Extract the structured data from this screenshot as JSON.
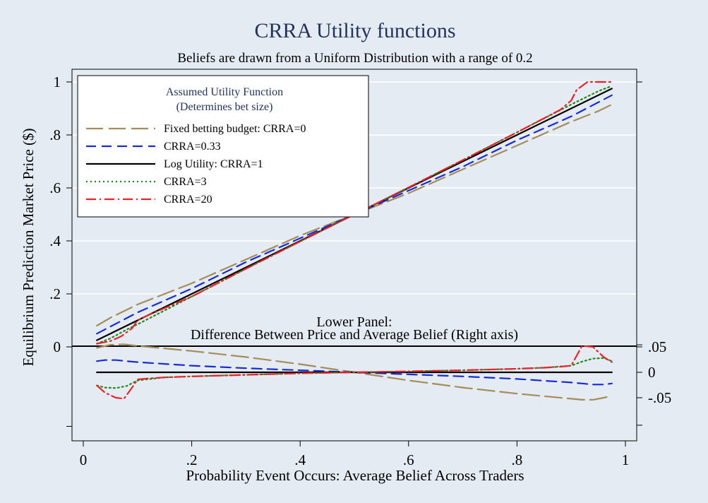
{
  "chart_data": {
    "type": "line",
    "title": "CRRA Utility functions",
    "subtitle": "Beliefs are drawn from a Uniform Distribution with a range of 0.2",
    "xlabel": "Probability Event Occurs: Average Belief Across Traders",
    "ylabel": "Equilibrium Prediction Market Price ($)",
    "xlim": [
      0,
      1
    ],
    "ylim": [
      -0.3,
      1
    ],
    "x_ticks": [
      {
        "value": 0,
        "label": "0"
      },
      {
        "value": 0.2,
        "label": ".2"
      },
      {
        "value": 0.4,
        "label": ".4"
      },
      {
        "value": 0.6,
        "label": ".6"
      },
      {
        "value": 0.8,
        "label": ".8"
      },
      {
        "value": 1,
        "label": "1"
      }
    ],
    "y_ticks": [
      {
        "value": 0,
        "label": "0"
      },
      {
        "value": 0.2,
        "label": ".2"
      },
      {
        "value": 0.4,
        "label": ".4"
      },
      {
        "value": 0.6,
        "label": ".6"
      },
      {
        "value": 0.8,
        "label": ".8"
      },
      {
        "value": 1,
        "label": "1"
      }
    ],
    "y2_ticks": [
      {
        "value": 0.05,
        "label": ".05"
      },
      {
        "value": 0,
        "label": "0"
      },
      {
        "value": -0.05,
        "label": "-.05"
      }
    ],
    "y2_range": [
      -0.134,
      0.054
    ],
    "lower_panel_label": [
      "Lower Panel:",
      "Difference Between Price and Average Belief (Right axis)"
    ],
    "grid": true,
    "legend": {
      "title": [
        "Assumed Utility Function",
        "(Determines bet size)"
      ],
      "placement": "top-left"
    },
    "series": [
      {
        "name": "Fixed betting budget: CRRA=0",
        "color": "#a38d5a",
        "dash": "long-dash",
        "upper_x": [
          0.025,
          0.05,
          0.1,
          0.2,
          0.3,
          0.4,
          0.5,
          0.6,
          0.7,
          0.8,
          0.9,
          0.95,
          0.975
        ],
        "upper_y": [
          0.08,
          0.11,
          0.16,
          0.24,
          0.33,
          0.42,
          0.5,
          0.58,
          0.67,
          0.76,
          0.85,
          0.89,
          0.915
        ],
        "lower_x": [
          0.025,
          0.05,
          0.075,
          0.1,
          0.2,
          0.3,
          0.4,
          0.5,
          0.6,
          0.7,
          0.8,
          0.9,
          0.92,
          0.94,
          0.96,
          0.975
        ],
        "lower_y": [
          0.048,
          0.054,
          0.055,
          0.052,
          0.042,
          0.03,
          0.016,
          0,
          -0.016,
          -0.03,
          -0.042,
          -0.052,
          -0.054,
          -0.054,
          -0.05,
          -0.046
        ]
      },
      {
        "name": "CRRA=0.33",
        "color": "#1a2bd6",
        "dash": "dash",
        "upper_x": [
          0.025,
          0.1,
          0.2,
          0.3,
          0.4,
          0.5,
          0.6,
          0.7,
          0.8,
          0.9,
          0.975
        ],
        "upper_y": [
          0.05,
          0.13,
          0.22,
          0.32,
          0.41,
          0.5,
          0.59,
          0.68,
          0.78,
          0.87,
          0.95
        ],
        "lower_x": [
          0.025,
          0.04,
          0.06,
          0.08,
          0.1,
          0.2,
          0.3,
          0.4,
          0.5,
          0.6,
          0.7,
          0.8,
          0.9,
          0.92,
          0.94,
          0.96,
          0.975
        ],
        "lower_y": [
          0.022,
          0.024,
          0.024,
          0.022,
          0.02,
          0.013,
          0.008,
          0.004,
          0,
          -0.004,
          -0.008,
          -0.013,
          -0.02,
          -0.022,
          -0.024,
          -0.024,
          -0.022
        ]
      },
      {
        "name": "Log Utility: CRRA=1",
        "color": "#000000",
        "dash": "solid",
        "upper_x": [
          0.025,
          0.2,
          0.4,
          0.5,
          0.6,
          0.8,
          0.975
        ],
        "upper_y": [
          0.025,
          0.2,
          0.4,
          0.5,
          0.6,
          0.8,
          0.975
        ],
        "lower_x": [
          0.025,
          0.975
        ],
        "lower_y": [
          0,
          0
        ]
      },
      {
        "name": "CRRA=3",
        "color": "#1f8a1f",
        "dash": "dot",
        "upper_x": [
          0.025,
          0.05,
          0.08,
          0.1,
          0.2,
          0.3,
          0.4,
          0.5,
          0.6,
          0.7,
          0.8,
          0.9,
          0.93,
          0.95,
          0.975
        ],
        "upper_y": [
          0.012,
          0.032,
          0.065,
          0.085,
          0.19,
          0.295,
          0.398,
          0.5,
          0.602,
          0.705,
          0.81,
          0.915,
          0.945,
          0.965,
          0.985
        ],
        "lower_x": [
          0.025,
          0.04,
          0.06,
          0.08,
          0.1,
          0.15,
          0.2,
          0.3,
          0.4,
          0.5,
          0.6,
          0.7,
          0.8,
          0.85,
          0.9,
          0.92,
          0.94,
          0.96,
          0.975
        ],
        "lower_y": [
          -0.026,
          -0.03,
          -0.031,
          -0.027,
          -0.016,
          -0.01,
          -0.008,
          -0.005,
          -0.002,
          0,
          0.002,
          0.004,
          0.007,
          0.009,
          0.013,
          0.021,
          0.027,
          0.028,
          0.022
        ]
      },
      {
        "name": "CRRA=20",
        "color": "#e8232a",
        "dash": "dash-dot",
        "upper_x": [
          0.025,
          0.05,
          0.07,
          0.09,
          0.1,
          0.12,
          0.2,
          0.3,
          0.4,
          0.5,
          0.6,
          0.7,
          0.8,
          0.88,
          0.9,
          0.91,
          0.93,
          0.95,
          0.975
        ],
        "upper_y": [
          0.012,
          0.022,
          0.04,
          0.07,
          0.1,
          0.12,
          0.19,
          0.295,
          0.398,
          0.5,
          0.602,
          0.705,
          0.81,
          0.895,
          0.93,
          0.97,
          1.0,
          1.0,
          1.0
        ],
        "lower_x": [
          0.025,
          0.04,
          0.06,
          0.075,
          0.09,
          0.1,
          0.12,
          0.15,
          0.2,
          0.3,
          0.4,
          0.5,
          0.6,
          0.7,
          0.8,
          0.85,
          0.88,
          0.9,
          0.92,
          0.94,
          0.96,
          0.975
        ],
        "lower_y": [
          -0.026,
          -0.04,
          -0.05,
          -0.052,
          -0.03,
          -0.014,
          -0.012,
          -0.01,
          -0.008,
          -0.005,
          -0.002,
          0,
          0.002,
          0.004,
          0.007,
          0.009,
          0.011,
          0.013,
          0.052,
          0.05,
          0.03,
          0.02
        ]
      }
    ]
  }
}
